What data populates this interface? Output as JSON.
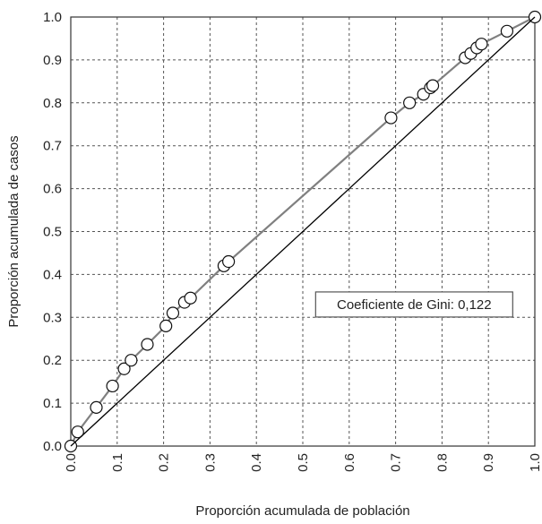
{
  "chart_data": {
    "type": "line",
    "title": "",
    "xlabel": "Proporción acumulada de población",
    "ylabel": "Proporción acumulada de casos",
    "xlim": [
      0,
      1
    ],
    "ylim": [
      0,
      1
    ],
    "x_ticks": [
      "0.0",
      "0.1",
      "0.2",
      "0.3",
      "0.4",
      "0.5",
      "0.6",
      "0.7",
      "0.8",
      "0.9",
      "1.0"
    ],
    "y_ticks": [
      "0.0",
      "0.1",
      "0.2",
      "0.3",
      "0.4",
      "0.5",
      "0.6",
      "0.7",
      "0.8",
      "0.9",
      "1.0"
    ],
    "grid": true,
    "series": [
      {
        "role": "lorenz-curve",
        "color": "#808080",
        "marker": "open-circle",
        "points": [
          {
            "x": 0.0,
            "y": 0.0
          },
          {
            "x": 0.015,
            "y": 0.033
          },
          {
            "x": 0.055,
            "y": 0.09
          },
          {
            "x": 0.09,
            "y": 0.14
          },
          {
            "x": 0.115,
            "y": 0.18
          },
          {
            "x": 0.13,
            "y": 0.2
          },
          {
            "x": 0.165,
            "y": 0.237
          },
          {
            "x": 0.205,
            "y": 0.28
          },
          {
            "x": 0.22,
            "y": 0.31
          },
          {
            "x": 0.245,
            "y": 0.335
          },
          {
            "x": 0.258,
            "y": 0.345
          },
          {
            "x": 0.33,
            "y": 0.42
          },
          {
            "x": 0.34,
            "y": 0.43
          },
          {
            "x": 0.69,
            "y": 0.765
          },
          {
            "x": 0.73,
            "y": 0.8
          },
          {
            "x": 0.76,
            "y": 0.82
          },
          {
            "x": 0.775,
            "y": 0.835
          },
          {
            "x": 0.78,
            "y": 0.84
          },
          {
            "x": 0.85,
            "y": 0.905
          },
          {
            "x": 0.862,
            "y": 0.915
          },
          {
            "x": 0.875,
            "y": 0.928
          },
          {
            "x": 0.885,
            "y": 0.937
          },
          {
            "x": 0.94,
            "y": 0.967
          },
          {
            "x": 1.0,
            "y": 1.0
          }
        ]
      },
      {
        "role": "equality-line",
        "color": "#000000",
        "points": [
          {
            "x": 0.0,
            "y": 0.0
          },
          {
            "x": 1.0,
            "y": 1.0
          }
        ]
      }
    ],
    "annotations": [
      {
        "text": "Coeficiente de Gini: 0,122",
        "x": 0.74,
        "y": 0.33
      }
    ]
  }
}
